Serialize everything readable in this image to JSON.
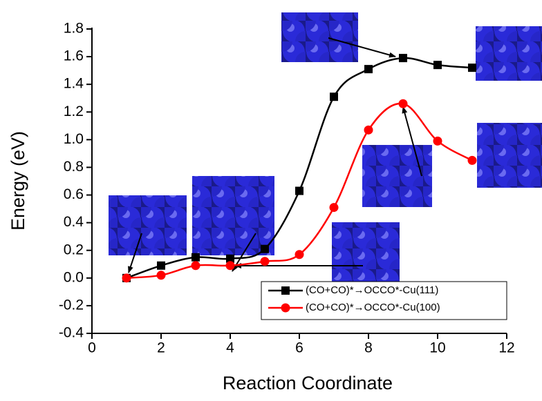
{
  "chart_data": {
    "type": "line",
    "x_label": "Reaction Coordinate",
    "y_label": "Energy (eV)",
    "x": [
      1,
      2,
      3,
      4,
      5,
      6,
      7,
      8,
      9,
      10,
      11
    ],
    "series": [
      {
        "name": "(CO+CO)*→OCCO*-Cu(111)",
        "color": "#000000",
        "marker": "square",
        "values": [
          0,
          0.09,
          0.15,
          0.14,
          0.21,
          0.63,
          1.31,
          1.51,
          1.59,
          1.54,
          1.52
        ]
      },
      {
        "name": "(CO+CO)*→OCCO*-Cu(100)",
        "color": "#ff0000",
        "marker": "circle",
        "values": [
          0,
          0.02,
          0.09,
          0.09,
          0.12,
          0.17,
          0.51,
          1.07,
          1.26,
          0.99,
          0.85
        ]
      }
    ],
    "xlim": [
      0,
      12
    ],
    "xticks": [
      0,
      2,
      4,
      6,
      8,
      10,
      12
    ],
    "ylim": [
      -0.4,
      1.8
    ],
    "yticks": [
      -0.4,
      -0.2,
      {
        "value": 0,
        "label": "0.0"
      },
      0.2,
      0.4,
      0.6,
      0.8,
      {
        "value": 1,
        "label": "1.0"
      },
      1.2,
      1.4,
      1.6,
      1.8
    ],
    "legend": "lower right",
    "grid": false
  }
}
